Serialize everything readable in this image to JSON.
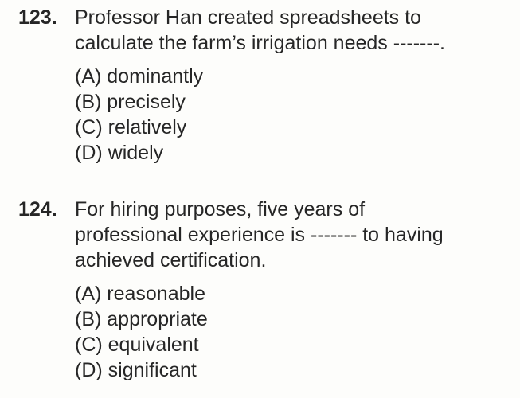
{
  "questions": [
    {
      "number": "123.",
      "stem_lines": [
        "Professor Han created spreadsheets to",
        "calculate the farm’s irrigation needs -------."
      ],
      "options": [
        "(A) dominantly",
        "(B) precisely",
        "(C) relatively",
        "(D) widely"
      ]
    },
    {
      "number": "124.",
      "stem_lines": [
        "For hiring purposes, five years of",
        "professional experience is ------- to having",
        "achieved certification."
      ],
      "options": [
        "(A) reasonable",
        "(B) appropriate",
        "(C) equivalent",
        "(D) significant"
      ]
    }
  ]
}
